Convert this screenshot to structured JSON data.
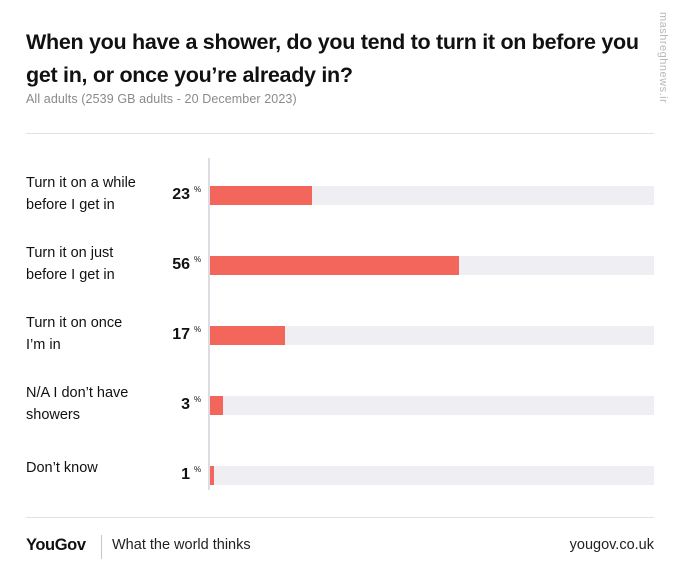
{
  "header": {
    "title": "When you have a shower, do you tend to turn it on before you get in, or once you’re already in?",
    "subtitle": "All adults (2539 GB adults - 20 December 2023)"
  },
  "watermark": "mashreghnews.ir",
  "colors": {
    "bar": "#f2665b",
    "track": "#eeeef3"
  },
  "chart_data": {
    "type": "bar",
    "orientation": "horizontal",
    "title": "When you have a shower, do you tend to turn it on before you get in, or once you’re already in?",
    "categories": [
      "Turn it on a while before I get in",
      "Turn it on just before I get in",
      "Turn it on once I’m in",
      "N/A I don’t have showers",
      "Don’t know"
    ],
    "label_lines": [
      [
        "Turn it on a while",
        "before I get in"
      ],
      [
        "Turn it on just",
        "before I get in"
      ],
      [
        "Turn it on once",
        "I’m in"
      ],
      [
        "N/A I don’t have",
        "showers"
      ],
      [
        "Don’t know"
      ]
    ],
    "values": [
      23,
      56,
      17,
      3,
      1
    ],
    "unit": "%",
    "xlim": [
      0,
      100
    ],
    "xlabel": "",
    "ylabel": ""
  },
  "footer": {
    "logo": "YouGov",
    "tagline": "What the world thinks",
    "url": "yougov.co.uk"
  }
}
